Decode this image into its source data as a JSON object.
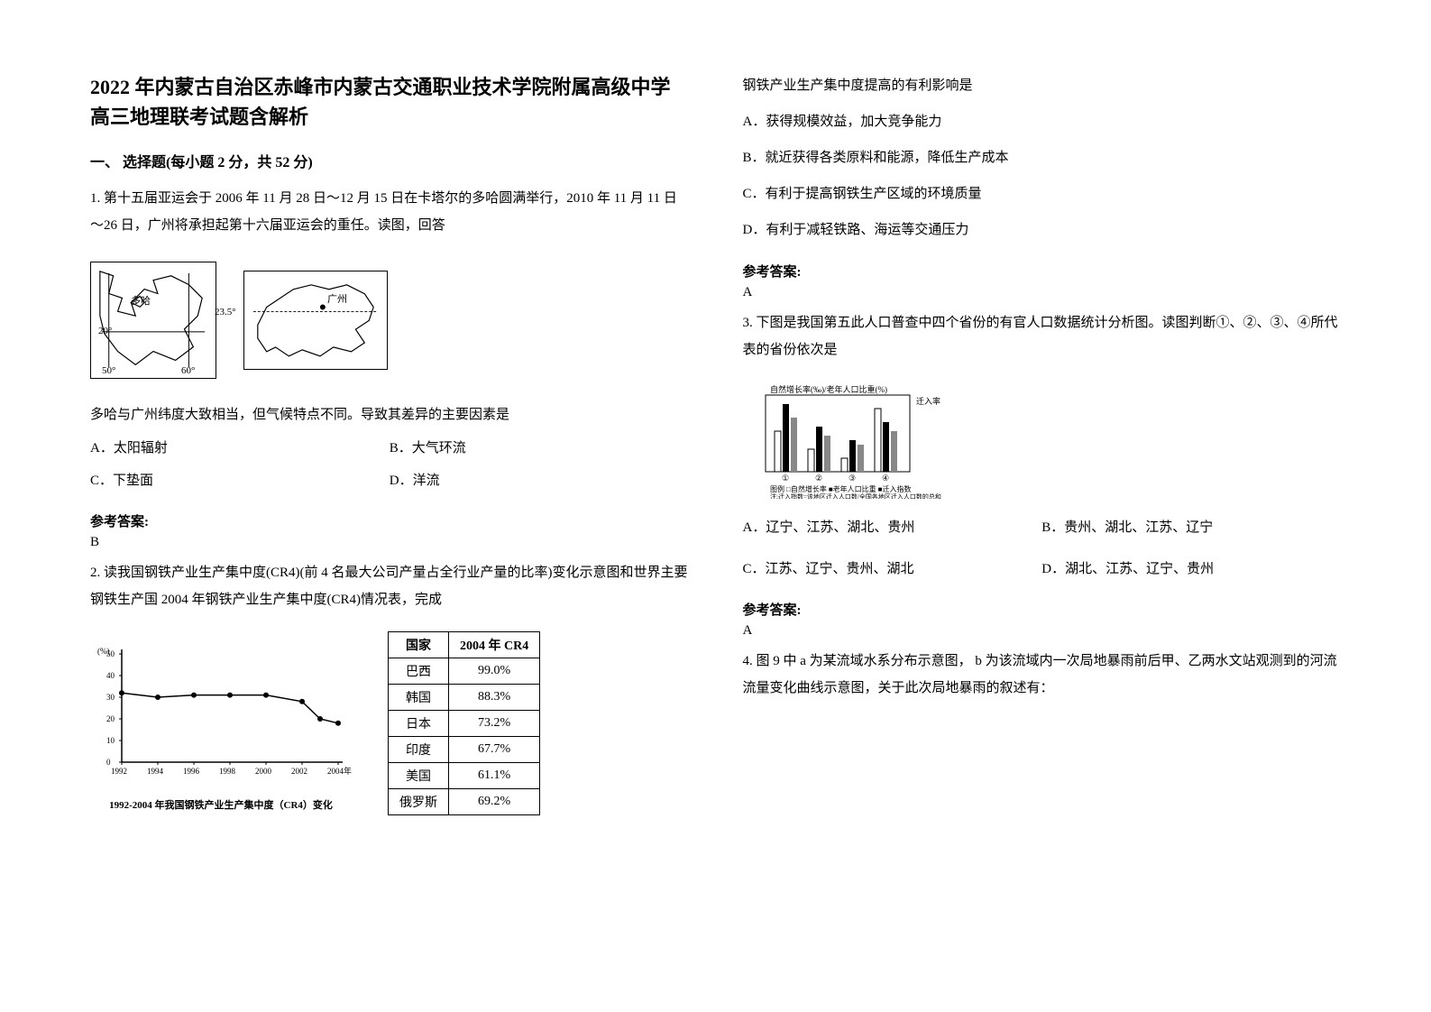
{
  "header": {
    "title": "2022 年内蒙古自治区赤峰市内蒙古交通职业技术学院附属高级中学高三地理联考试题含解析"
  },
  "section1": {
    "heading": "一、 选择题(每小题 2 分，共 52 分)"
  },
  "q1": {
    "stem": "1. 第十五届亚运会于 2006 年 11 月 28 日～12 月 15 日在卡塔尔的多哈圆满举行，2010 年 11 月 11 日～26 日，广州将承担起第十六届亚运会的重任。读图，回答",
    "map1": {
      "label_doha": "多哈",
      "lat20": "20°",
      "lon50": "50°",
      "lon60": "60°"
    },
    "map2": {
      "label_gz": "广州",
      "lat": "23.5°"
    },
    "sub": "多哈与广州纬度大致相当，但气候特点不同。导致其差异的主要因素是",
    "optA": "A．太阳辐射",
    "optB": "B．大气环流",
    "optC": "C．下垫面",
    "optD": "D．洋流",
    "answer_label": "参考答案:",
    "answer": "B"
  },
  "q2": {
    "stem": "2. 读我国钢铁产业生产集中度(CR4)(前 4 名最大公司产量占全行业产量的比率)变化示意图和世界主要钢铁生产国 2004 年钢铁产业生产集中度(CR4)情况表，完成",
    "chart": {
      "type": "line",
      "ylabel": "(%)",
      "xlim": [
        1992,
        2004
      ],
      "ylim": [
        0,
        50
      ],
      "ytick_step": 10,
      "xtick_step": 2,
      "xticks": [
        "1992",
        "1994",
        "1996",
        "1998",
        "2000",
        "2002",
        "2004年"
      ],
      "yticks": [
        "0",
        "10",
        "20",
        "30",
        "40",
        "50"
      ],
      "values": [
        {
          "x": 1992,
          "y": 32
        },
        {
          "x": 1994,
          "y": 30
        },
        {
          "x": 1996,
          "y": 31
        },
        {
          "x": 1998,
          "y": 31
        },
        {
          "x": 2000,
          "y": 31
        },
        {
          "x": 2002,
          "y": 28
        },
        {
          "x": 2003,
          "y": 20
        },
        {
          "x": 2004,
          "y": 18
        }
      ],
      "line_color": "#000000",
      "marker": "circle",
      "marker_size": 3,
      "caption": "1992-2004 年我国钢铁产业生产集中度（CR4）变化"
    },
    "table": {
      "columns": [
        "国家",
        "2004 年 CR4"
      ],
      "rows": [
        [
          "巴西",
          "99.0%"
        ],
        [
          "韩国",
          "88.3%"
        ],
        [
          "日本",
          "73.2%"
        ],
        [
          "印度",
          "67.7%"
        ],
        [
          "美国",
          "61.1%"
        ],
        [
          "俄罗斯",
          "69.2%"
        ]
      ]
    },
    "sub": "钢铁产业生产集中度提高的有利影响是",
    "optA": "A．获得规模效益，加大竞争能力",
    "optB": "B．就近获得各类原料和能源，降低生产成本",
    "optC": "C．有利于提高钢铁生产区域的环境质量",
    "optD": "D．有利于减轻铁路、海运等交通压力",
    "answer_label": "参考答案:",
    "answer": "A"
  },
  "q3": {
    "stem": "3. 下图是我国第五此人口普查中四个省份的有官人口数据统计分析图。读图判断①、②、③、④所代表的省份依次是",
    "optA": "A．辽宁、江苏、湖北、贵州",
    "optB": "B．贵州、湖北、江苏、辽宁",
    "optC": "C．江苏、辽宁、贵州、湖北",
    "optD": "D．湖北、江苏、辽宁、贵州",
    "answer_label": "参考答案:",
    "answer": "A"
  },
  "q4": {
    "stem": "4. 图 9 中 a 为某流域水系分布示意图， b 为该流域内一次局地暴雨前后甲、乙两水文站观测到的河流流量变化曲线示意图，关于此次局地暴雨的叙述有："
  }
}
